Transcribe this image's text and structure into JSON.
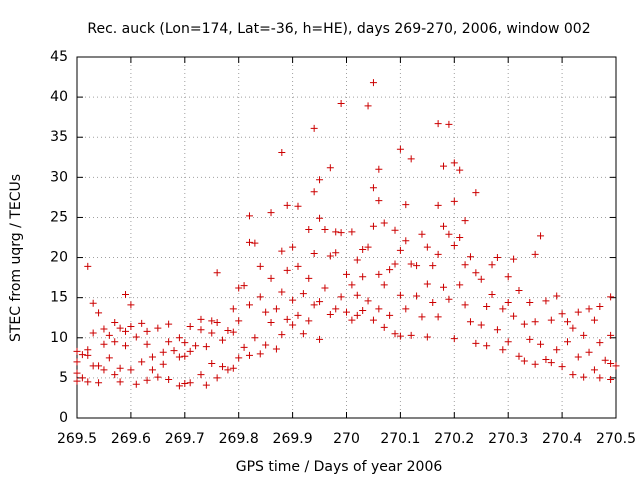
{
  "chart_data": {
    "type": "scatter",
    "title": "Rec. auck (Lon=174, Lat=-36, h=HE), days 269-270, 2006, window 002",
    "xlabel": "GPS time / Days of year 2006",
    "ylabel": "STEC from uqrg / TECUs",
    "xlim": [
      269.5,
      270.5
    ],
    "ylim": [
      0,
      45
    ],
    "x_ticks": [
      "269.5",
      "269.6",
      "269.7",
      "269.8",
      "269.9",
      "270",
      "270.1",
      "270.2",
      "270.3",
      "270.4",
      "270.5"
    ],
    "y_ticks": [
      "0",
      "5",
      "10",
      "15",
      "20",
      "25",
      "30",
      "35",
      "40",
      "45"
    ],
    "grid": true,
    "marker": "+",
    "color": "#cc0000",
    "points": [
      [
        269.5,
        8.3
      ],
      [
        269.5,
        7.0
      ],
      [
        269.5,
        5.6
      ],
      [
        269.5,
        4.6
      ],
      [
        269.51,
        7.9
      ],
      [
        269.51,
        5.0
      ],
      [
        269.52,
        18.9
      ],
      [
        269.52,
        8.5
      ],
      [
        269.52,
        7.8
      ],
      [
        269.52,
        4.5
      ],
      [
        269.53,
        14.3
      ],
      [
        269.53,
        10.6
      ],
      [
        269.53,
        6.5
      ],
      [
        269.54,
        13.1
      ],
      [
        269.54,
        6.5
      ],
      [
        269.54,
        4.4
      ],
      [
        269.55,
        11.1
      ],
      [
        269.55,
        9.2
      ],
      [
        269.55,
        6.0
      ],
      [
        269.56,
        10.3
      ],
      [
        269.56,
        7.5
      ],
      [
        269.57,
        11.9
      ],
      [
        269.57,
        9.5
      ],
      [
        269.57,
        5.4
      ],
      [
        269.58,
        11.2
      ],
      [
        269.58,
        6.2
      ],
      [
        269.58,
        4.5
      ],
      [
        269.59,
        15.4
      ],
      [
        269.59,
        10.8
      ],
      [
        269.59,
        9.0
      ],
      [
        269.6,
        14.1
      ],
      [
        269.6,
        11.4
      ],
      [
        269.6,
        6.0
      ],
      [
        269.61,
        10.1
      ],
      [
        269.61,
        4.2
      ],
      [
        269.62,
        11.8
      ],
      [
        269.62,
        7.0
      ],
      [
        269.63,
        10.8
      ],
      [
        269.63,
        9.2
      ],
      [
        269.63,
        4.7
      ],
      [
        269.64,
        7.6
      ],
      [
        269.64,
        6.0
      ],
      [
        269.65,
        11.2
      ],
      [
        269.65,
        5.1
      ],
      [
        269.66,
        8.2
      ],
      [
        269.66,
        6.7
      ],
      [
        269.67,
        11.7
      ],
      [
        269.67,
        9.5
      ],
      [
        269.67,
        4.8
      ],
      [
        269.68,
        8.4
      ],
      [
        269.69,
        10.0
      ],
      [
        269.69,
        7.6
      ],
      [
        269.69,
        4.0
      ],
      [
        269.7,
        9.4
      ],
      [
        269.7,
        7.7
      ],
      [
        269.7,
        4.3
      ],
      [
        269.71,
        11.4
      ],
      [
        269.71,
        8.3
      ],
      [
        269.71,
        4.4
      ],
      [
        269.72,
        9.0
      ],
      [
        269.73,
        12.3
      ],
      [
        269.73,
        11.0
      ],
      [
        269.73,
        5.4
      ],
      [
        269.74,
        8.9
      ],
      [
        269.74,
        4.1
      ],
      [
        269.75,
        12.1
      ],
      [
        269.75,
        10.6
      ],
      [
        269.75,
        6.8
      ],
      [
        269.76,
        18.1
      ],
      [
        269.76,
        11.9
      ],
      [
        269.76,
        5.0
      ],
      [
        269.77,
        9.7
      ],
      [
        269.77,
        6.4
      ],
      [
        269.78,
        10.9
      ],
      [
        269.78,
        6.0
      ],
      [
        269.79,
        13.6
      ],
      [
        269.79,
        10.7
      ],
      [
        269.79,
        6.2
      ],
      [
        269.8,
        16.2
      ],
      [
        269.8,
        12.1
      ],
      [
        269.8,
        7.5
      ],
      [
        269.81,
        16.5
      ],
      [
        269.81,
        8.8
      ],
      [
        269.82,
        25.2
      ],
      [
        269.82,
        21.9
      ],
      [
        269.82,
        14.1
      ],
      [
        269.82,
        7.8
      ],
      [
        269.83,
        21.8
      ],
      [
        269.83,
        10.0
      ],
      [
        269.84,
        18.9
      ],
      [
        269.84,
        15.1
      ],
      [
        269.84,
        8.0
      ],
      [
        269.85,
        13.2
      ],
      [
        269.85,
        9.1
      ],
      [
        269.86,
        25.6
      ],
      [
        269.86,
        17.4
      ],
      [
        269.86,
        11.9
      ],
      [
        269.87,
        13.6
      ],
      [
        269.87,
        8.6
      ],
      [
        269.88,
        33.1
      ],
      [
        269.88,
        20.8
      ],
      [
        269.88,
        15.7
      ],
      [
        269.88,
        10.4
      ],
      [
        269.89,
        26.5
      ],
      [
        269.89,
        18.4
      ],
      [
        269.89,
        12.3
      ],
      [
        269.9,
        21.3
      ],
      [
        269.9,
        14.7
      ],
      [
        269.9,
        11.6
      ],
      [
        269.91,
        26.4
      ],
      [
        269.91,
        18.9
      ],
      [
        269.91,
        12.8
      ],
      [
        269.92,
        15.5
      ],
      [
        269.92,
        10.5
      ],
      [
        269.93,
        23.5
      ],
      [
        269.93,
        17.4
      ],
      [
        269.93,
        12.1
      ],
      [
        269.94,
        36.1
      ],
      [
        269.94,
        28.2
      ],
      [
        269.94,
        20.5
      ],
      [
        269.94,
        14.1
      ],
      [
        269.95,
        29.7
      ],
      [
        269.95,
        24.9
      ],
      [
        269.95,
        14.5
      ],
      [
        269.95,
        9.8
      ],
      [
        269.96,
        23.5
      ],
      [
        269.96,
        16.2
      ],
      [
        269.97,
        31.2
      ],
      [
        269.97,
        20.2
      ],
      [
        269.97,
        12.9
      ],
      [
        269.98,
        23.2
      ],
      [
        269.98,
        20.6
      ],
      [
        269.98,
        13.6
      ],
      [
        269.99,
        39.2
      ],
      [
        269.99,
        23.1
      ],
      [
        269.99,
        15.1
      ],
      [
        270.0,
        17.9
      ],
      [
        270.0,
        13.2
      ],
      [
        270.01,
        23.2
      ],
      [
        270.01,
        16.6
      ],
      [
        270.01,
        12.2
      ],
      [
        270.02,
        19.7
      ],
      [
        270.02,
        15.3
      ],
      [
        270.02,
        12.8
      ],
      [
        270.03,
        21.0
      ],
      [
        270.03,
        17.6
      ],
      [
        270.03,
        13.4
      ],
      [
        270.04,
        38.9
      ],
      [
        270.04,
        21.3
      ],
      [
        270.04,
        14.6
      ],
      [
        270.05,
        41.8
      ],
      [
        270.05,
        28.7
      ],
      [
        270.05,
        23.9
      ],
      [
        270.05,
        12.2
      ],
      [
        270.06,
        31.0
      ],
      [
        270.06,
        27.1
      ],
      [
        270.06,
        17.9
      ],
      [
        270.06,
        13.6
      ],
      [
        270.07,
        24.3
      ],
      [
        270.07,
        16.6
      ],
      [
        270.07,
        11.3
      ],
      [
        270.08,
        18.5
      ],
      [
        270.08,
        12.8
      ],
      [
        270.09,
        23.4
      ],
      [
        270.09,
        19.2
      ],
      [
        270.09,
        10.5
      ],
      [
        270.1,
        33.5
      ],
      [
        270.1,
        20.9
      ],
      [
        270.1,
        15.3
      ],
      [
        270.1,
        10.2
      ],
      [
        270.11,
        26.6
      ],
      [
        270.11,
        22.1
      ],
      [
        270.11,
        13.6
      ],
      [
        270.12,
        32.3
      ],
      [
        270.12,
        19.2
      ],
      [
        270.12,
        10.3
      ],
      [
        270.13,
        19.0
      ],
      [
        270.13,
        15.2
      ],
      [
        270.14,
        22.9
      ],
      [
        270.14,
        12.6
      ],
      [
        270.15,
        21.3
      ],
      [
        270.15,
        16.7
      ],
      [
        270.15,
        10.1
      ],
      [
        270.16,
        19.0
      ],
      [
        270.16,
        14.4
      ],
      [
        270.17,
        36.7
      ],
      [
        270.17,
        26.5
      ],
      [
        270.17,
        20.4
      ],
      [
        270.17,
        12.6
      ],
      [
        270.18,
        31.4
      ],
      [
        270.18,
        23.9
      ],
      [
        270.18,
        16.3
      ],
      [
        270.19,
        36.6
      ],
      [
        270.19,
        22.9
      ],
      [
        270.19,
        14.8
      ],
      [
        270.2,
        31.8
      ],
      [
        270.2,
        27.0
      ],
      [
        270.2,
        21.5
      ],
      [
        270.2,
        9.9
      ],
      [
        270.21,
        30.9
      ],
      [
        270.21,
        22.5
      ],
      [
        270.21,
        16.6
      ],
      [
        270.22,
        24.6
      ],
      [
        270.22,
        19.1
      ],
      [
        270.22,
        14.1
      ],
      [
        270.23,
        20.1
      ],
      [
        270.23,
        12.0
      ],
      [
        270.24,
        28.1
      ],
      [
        270.24,
        18.1
      ],
      [
        270.24,
        9.3
      ],
      [
        270.25,
        17.3
      ],
      [
        270.25,
        11.6
      ],
      [
        270.26,
        13.9
      ],
      [
        270.26,
        9.0
      ],
      [
        270.27,
        19.1
      ],
      [
        270.27,
        15.4
      ],
      [
        270.28,
        20.0
      ],
      [
        270.28,
        11.0
      ],
      [
        270.29,
        13.6
      ],
      [
        270.29,
        8.5
      ],
      [
        270.3,
        17.6
      ],
      [
        270.3,
        14.4
      ],
      [
        270.3,
        9.5
      ],
      [
        270.31,
        19.8
      ],
      [
        270.31,
        12.7
      ],
      [
        270.32,
        15.9
      ],
      [
        270.32,
        7.7
      ],
      [
        270.33,
        11.7
      ],
      [
        270.33,
        7.1
      ],
      [
        270.34,
        14.4
      ],
      [
        270.34,
        9.8
      ],
      [
        270.35,
        20.4
      ],
      [
        270.35,
        12.0
      ],
      [
        270.35,
        6.7
      ],
      [
        270.36,
        22.7
      ],
      [
        270.36,
        9.2
      ],
      [
        270.37,
        14.6
      ],
      [
        270.37,
        7.3
      ],
      [
        270.38,
        12.2
      ],
      [
        270.38,
        6.9
      ],
      [
        270.39,
        15.2
      ],
      [
        270.39,
        8.5
      ],
      [
        270.4,
        13.0
      ],
      [
        270.4,
        6.4
      ],
      [
        270.41,
        12.0
      ],
      [
        270.41,
        9.5
      ],
      [
        270.42,
        11.2
      ],
      [
        270.42,
        5.4
      ],
      [
        270.43,
        13.2
      ],
      [
        270.43,
        7.6
      ],
      [
        270.44,
        10.3
      ],
      [
        270.44,
        5.1
      ],
      [
        270.45,
        13.6
      ],
      [
        270.45,
        8.2
      ],
      [
        270.46,
        12.2
      ],
      [
        270.46,
        6.0
      ],
      [
        270.47,
        13.9
      ],
      [
        270.47,
        9.4
      ],
      [
        270.47,
        5.0
      ],
      [
        270.48,
        7.2
      ],
      [
        270.49,
        15.1
      ],
      [
        270.49,
        10.3
      ],
      [
        270.49,
        6.8
      ],
      [
        270.49,
        4.8
      ],
      [
        270.5,
        6.5
      ]
    ]
  }
}
